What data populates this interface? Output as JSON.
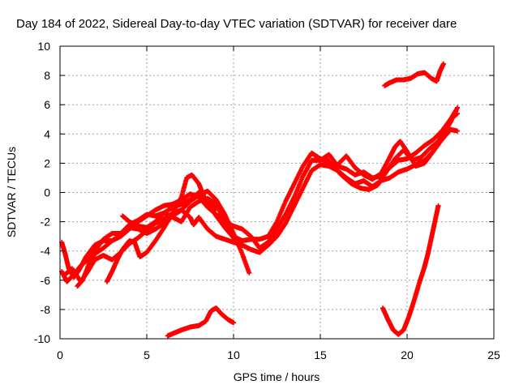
{
  "chart_data": {
    "type": "scatter",
    "title": "Day 184 of 2022, Sidereal Day-to-day VTEC variation (SDTVAR) for receiver dare",
    "xlabel": "GPS time / hours",
    "ylabel": "SDTVAR / TECUs",
    "xlim": [
      0,
      25
    ],
    "ylim": [
      -10,
      10
    ],
    "x_ticks": [
      0,
      5,
      10,
      15,
      20,
      25
    ],
    "y_ticks": [
      -10,
      -8,
      -6,
      -4,
      -2,
      0,
      2,
      4,
      6,
      8,
      10
    ],
    "x_tick_labels": [
      "0",
      "5",
      "10",
      "15",
      "20",
      "25"
    ],
    "y_tick_labels": [
      "-10",
      "-8",
      "-6",
      "-4",
      "-2",
      "0",
      "2",
      "4",
      "6",
      "8",
      "10"
    ],
    "grid": true,
    "marker": "+",
    "color": "#ff0000",
    "series": [
      {
        "values": [
          [
            0.1,
            -3.4
          ],
          [
            0.3,
            -4.2
          ],
          [
            0.5,
            -5.2
          ],
          [
            0.8,
            -5.8
          ],
          [
            1.1,
            -5.3
          ],
          [
            1.5,
            -4.4
          ],
          [
            2.0,
            -3.6
          ],
          [
            2.5,
            -3.3
          ],
          [
            3.0,
            -3.3
          ],
          [
            3.5,
            -3.0
          ],
          [
            4.0,
            -2.5
          ],
          [
            4.5,
            -2.0
          ],
          [
            5.0,
            -1.6
          ],
          [
            5.5,
            -1.2
          ],
          [
            6.0,
            -0.9
          ],
          [
            6.5,
            -0.8
          ],
          [
            7.0,
            -0.5
          ],
          [
            7.5,
            -0.1
          ],
          [
            8.0,
            -0.3
          ],
          [
            8.5,
            -1.0
          ],
          [
            9.0,
            -1.5
          ],
          [
            9.5,
            -2.0
          ],
          [
            10.0,
            -2.3
          ],
          [
            10.5,
            -2.5
          ],
          [
            11.0,
            -3.0
          ],
          [
            11.5,
            -3.8
          ],
          [
            12.0,
            -3.4
          ],
          [
            12.5,
            -2.5
          ],
          [
            13.0,
            -1.5
          ],
          [
            13.5,
            -0.3
          ],
          [
            14.0,
            1.1
          ],
          [
            14.5,
            2.2
          ],
          [
            15.0,
            2.2
          ],
          [
            15.5,
            2.6
          ],
          [
            16.0,
            1.8
          ],
          [
            16.5,
            1.6
          ],
          [
            17.0,
            1.2
          ],
          [
            17.5,
            1.4
          ],
          [
            18.0,
            1.0
          ],
          [
            18.5,
            1.1
          ],
          [
            19.0,
            1.7
          ],
          [
            19.5,
            2.2
          ],
          [
            20.0,
            2.3
          ],
          [
            20.5,
            2.7
          ],
          [
            21.0,
            3.2
          ],
          [
            21.5,
            3.6
          ],
          [
            22.0,
            4.2
          ],
          [
            22.5,
            5.0
          ],
          [
            22.9,
            5.4
          ]
        ]
      },
      {
        "values": [
          [
            0.1,
            -5.4
          ],
          [
            0.4,
            -6.1
          ],
          [
            0.8,
            -5.6
          ],
          [
            1.2,
            -5.0
          ],
          [
            1.6,
            -4.6
          ],
          [
            2.0,
            -4.0
          ],
          [
            2.5,
            -3.2
          ],
          [
            3.0,
            -2.8
          ],
          [
            3.5,
            -2.8
          ],
          [
            4.0,
            -2.2
          ],
          [
            4.5,
            -1.9
          ],
          [
            5.0,
            -1.5
          ],
          [
            5.5,
            -1.6
          ],
          [
            6.0,
            -1.4
          ],
          [
            6.5,
            -1.7
          ],
          [
            7.0,
            -2.0
          ],
          [
            7.5,
            -1.0
          ],
          [
            8.0,
            -0.6
          ],
          [
            8.5,
            -0.4
          ],
          [
            9.0,
            -0.8
          ],
          [
            9.5,
            -2.0
          ],
          [
            10.0,
            -3.0
          ],
          [
            10.5,
            -3.3
          ],
          [
            11.0,
            -3.2
          ],
          [
            11.5,
            -3.2
          ],
          [
            12.0,
            -3.0
          ],
          [
            12.5,
            -2.0
          ],
          [
            13.0,
            -0.6
          ],
          [
            13.5,
            0.6
          ],
          [
            14.0,
            1.8
          ],
          [
            14.5,
            2.7
          ],
          [
            15.0,
            2.3
          ],
          [
            15.5,
            2.0
          ],
          [
            16.0,
            1.9
          ],
          [
            16.5,
            2.5
          ],
          [
            17.0,
            1.7
          ],
          [
            17.5,
            1.2
          ],
          [
            18.0,
            0.9
          ],
          [
            18.5,
            1.3
          ],
          [
            19.0,
            2.4
          ],
          [
            19.3,
            3.1
          ],
          [
            19.6,
            3.5
          ],
          [
            20.0,
            2.8
          ],
          [
            20.5,
            1.8
          ],
          [
            21.0,
            2.0
          ],
          [
            21.5,
            2.8
          ],
          [
            22.0,
            3.6
          ],
          [
            22.5,
            4.3
          ],
          [
            22.9,
            4.2
          ]
        ]
      },
      {
        "values": [
          [
            0.3,
            -5.6
          ],
          [
            0.7,
            -5.2
          ],
          [
            1.2,
            -6.1
          ],
          [
            1.6,
            -5.4
          ],
          [
            2.0,
            -4.6
          ],
          [
            2.5,
            -4.3
          ],
          [
            3.0,
            -4.6
          ],
          [
            3.5,
            -4.1
          ],
          [
            4.0,
            -3.5
          ],
          [
            4.5,
            -3.1
          ],
          [
            5.0,
            -2.6
          ],
          [
            5.5,
            -2.1
          ],
          [
            6.0,
            -1.8
          ],
          [
            6.5,
            -1.4
          ],
          [
            7.0,
            -1.2
          ],
          [
            7.5,
            -1.7
          ],
          [
            7.7,
            -2.2
          ],
          [
            8.0,
            -1.7
          ],
          [
            8.5,
            -2.5
          ],
          [
            9.0,
            -3.0
          ],
          [
            9.5,
            -3.2
          ],
          [
            10.0,
            -3.4
          ],
          [
            10.5,
            -3.6
          ],
          [
            11.0,
            -3.9
          ],
          [
            11.5,
            -4.1
          ],
          [
            12.0,
            -3.6
          ],
          [
            12.5,
            -3.0
          ],
          [
            13.0,
            -2.1
          ],
          [
            13.5,
            -0.9
          ],
          [
            14.0,
            0.3
          ],
          [
            14.5,
            1.5
          ],
          [
            15.0,
            1.9
          ],
          [
            15.5,
            1.8
          ],
          [
            16.0,
            1.5
          ],
          [
            16.5,
            1.0
          ],
          [
            17.0,
            0.6
          ],
          [
            17.5,
            0.8
          ],
          [
            18.0,
            0.4
          ],
          [
            18.5,
            0.8
          ],
          [
            19.0,
            1.0
          ],
          [
            19.5,
            1.4
          ],
          [
            20.0,
            1.6
          ],
          [
            20.5,
            1.9
          ],
          [
            21.0,
            2.2
          ],
          [
            21.5,
            2.8
          ],
          [
            22.0,
            3.8
          ],
          [
            22.5,
            4.8
          ],
          [
            22.9,
            5.8
          ]
        ]
      },
      {
        "values": [
          [
            1.0,
            -6.4
          ],
          [
            1.3,
            -6.0
          ],
          [
            1.7,
            -4.8
          ],
          [
            2.0,
            -4.2
          ],
          [
            2.5,
            -3.8
          ],
          [
            3.0,
            -3.3
          ],
          [
            3.5,
            -2.9
          ],
          [
            4.0,
            -2.4
          ],
          [
            4.5,
            -2.5
          ],
          [
            5.0,
            -2.8
          ],
          [
            5.5,
            -2.5
          ],
          [
            6.0,
            -2.1
          ],
          [
            6.5,
            -1.6
          ],
          [
            7.0,
            -1.2
          ],
          [
            7.5,
            -0.6
          ],
          [
            8.0,
            -0.2
          ],
          [
            8.5,
            0.1
          ],
          [
            9.0,
            -0.5
          ],
          [
            9.5,
            -1.5
          ],
          [
            10.0,
            -2.8
          ],
          [
            10.5,
            -4.2
          ],
          [
            10.9,
            -5.5
          ]
        ]
      },
      {
        "values": [
          [
            2.7,
            -6.1
          ],
          [
            3.0,
            -5.4
          ],
          [
            3.3,
            -4.6
          ],
          [
            3.6,
            -3.9
          ],
          [
            4.0,
            -3.3
          ],
          [
            4.3,
            -3.4
          ],
          [
            4.6,
            -4.4
          ],
          [
            5.0,
            -4.1
          ],
          [
            5.5,
            -3.3
          ],
          [
            6.0,
            -2.4
          ],
          [
            6.5,
            -1.4
          ],
          [
            7.0,
            -0.3
          ],
          [
            7.3,
            1.0
          ],
          [
            7.6,
            1.2
          ],
          [
            8.0,
            0.6
          ],
          [
            8.3,
            -0.3
          ],
          [
            8.7,
            -1.0
          ],
          [
            9.0,
            -1.6
          ],
          [
            9.5,
            -2.4
          ],
          [
            10.0,
            -3.1
          ],
          [
            10.3,
            -3.6
          ]
        ]
      },
      {
        "values": [
          [
            3.6,
            -1.6
          ],
          [
            4.0,
            -2.0
          ],
          [
            4.5,
            -2.3
          ],
          [
            5.0,
            -2.4
          ],
          [
            5.5,
            -2.0
          ],
          [
            6.0,
            -1.4
          ],
          [
            6.5,
            -1.0
          ],
          [
            7.0,
            -0.8
          ],
          [
            7.5,
            -0.5
          ],
          [
            8.0,
            0.0
          ],
          [
            8.5,
            -0.6
          ],
          [
            9.0,
            -1.1
          ]
        ]
      },
      {
        "values": [
          [
            15.3,
            2.4
          ],
          [
            15.8,
            1.7
          ],
          [
            16.3,
            1.1
          ],
          [
            16.8,
            0.6
          ],
          [
            17.3,
            0.3
          ],
          [
            17.8,
            0.2
          ],
          [
            18.3,
            0.5
          ],
          [
            18.8,
            1.4
          ],
          [
            19.3,
            2.3
          ],
          [
            19.8,
            2.9
          ],
          [
            20.3,
            2.2
          ],
          [
            20.8,
            2.4
          ],
          [
            21.3,
            3.0
          ],
          [
            21.8,
            3.5
          ],
          [
            22.3,
            4.6
          ],
          [
            22.8,
            5.6
          ]
        ]
      },
      {
        "values": [
          [
            6.2,
            -9.8
          ],
          [
            6.6,
            -9.6
          ],
          [
            7.0,
            -9.4
          ],
          [
            7.5,
            -9.2
          ],
          [
            8.0,
            -9.1
          ],
          [
            8.4,
            -8.8
          ],
          [
            8.7,
            -8.1
          ],
          [
            9.0,
            -7.9
          ],
          [
            9.3,
            -8.3
          ],
          [
            9.7,
            -8.7
          ],
          [
            10.0,
            -8.9
          ]
        ]
      },
      {
        "values": [
          [
            18.7,
            7.3
          ],
          [
            19.0,
            7.5
          ],
          [
            19.4,
            7.7
          ],
          [
            19.8,
            7.7
          ],
          [
            20.2,
            7.8
          ],
          [
            20.6,
            8.1
          ],
          [
            21.0,
            8.2
          ],
          [
            21.4,
            7.8
          ],
          [
            21.7,
            7.6
          ],
          [
            21.9,
            8.3
          ],
          [
            22.1,
            8.8
          ]
        ]
      },
      {
        "values": [
          [
            18.6,
            -7.9
          ],
          [
            18.9,
            -8.7
          ],
          [
            19.2,
            -9.4
          ],
          [
            19.5,
            -9.7
          ],
          [
            19.8,
            -9.4
          ],
          [
            20.1,
            -8.5
          ],
          [
            20.4,
            -7.4
          ],
          [
            20.7,
            -6.2
          ],
          [
            21.0,
            -5.1
          ],
          [
            21.2,
            -4.2
          ],
          [
            21.4,
            -3.1
          ],
          [
            21.6,
            -2.0
          ],
          [
            21.8,
            -0.9
          ]
        ]
      }
    ]
  }
}
